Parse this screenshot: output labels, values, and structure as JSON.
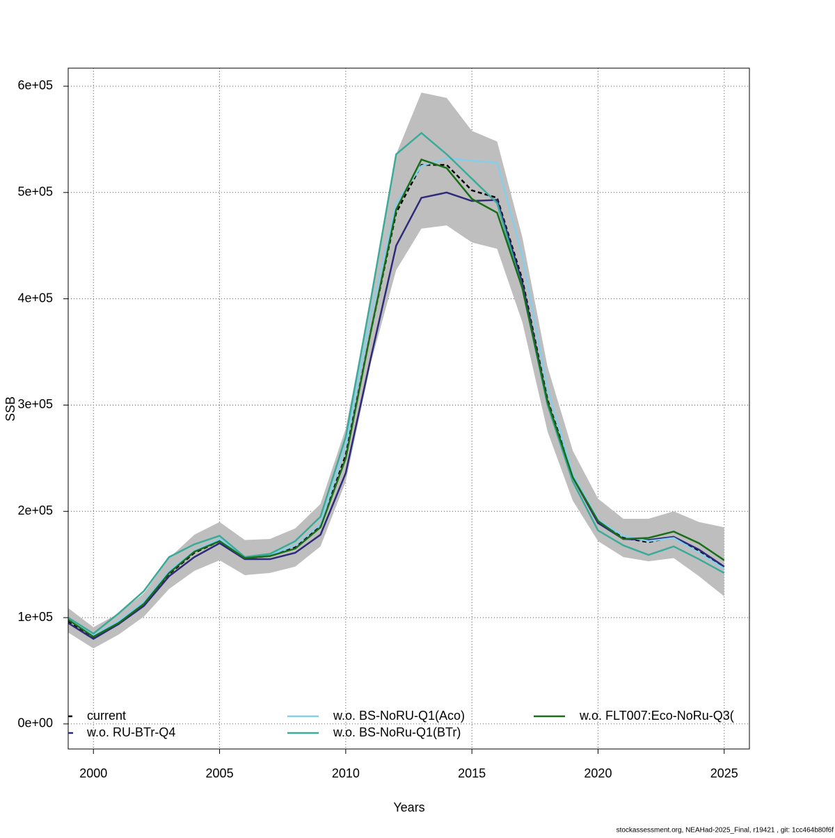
{
  "chart_data": {
    "type": "line",
    "x_label": "Years",
    "y_label": "SSB",
    "footer": "stockassessment.org, NEAHad-2025_Final, r19421 , git: 1cc464b80f6f",
    "x": [
      1999,
      2000,
      2001,
      2002,
      2003,
      2004,
      2005,
      2006,
      2007,
      2008,
      2009,
      2010,
      2011,
      2012,
      2013,
      2014,
      2015,
      2016,
      2017,
      2018,
      2019,
      2020,
      2021,
      2022,
      2023,
      2024,
      2025
    ],
    "xlim": [
      1999,
      2026
    ],
    "xticks": [
      2000,
      2005,
      2010,
      2015,
      2020,
      2025
    ],
    "ylim": [
      -23600,
      617000
    ],
    "yticks": [
      {
        "value": 0,
        "label": "0e+00"
      },
      {
        "value": 100000,
        "label": "1e+05"
      },
      {
        "value": 200000,
        "label": "2e+05"
      },
      {
        "value": 300000,
        "label": "3e+05"
      },
      {
        "value": 400000,
        "label": "4e+05"
      },
      {
        "value": 500000,
        "label": "5e+05"
      },
      {
        "value": 600000,
        "label": "6e+05"
      }
    ],
    "grid": true,
    "band": {
      "color": "#bebebe",
      "lower": [
        86000,
        71000,
        84000,
        101000,
        127000,
        144000,
        154000,
        140000,
        142000,
        148000,
        167000,
        228000,
        340000,
        427000,
        466000,
        469000,
        453000,
        447000,
        378000,
        275000,
        210000,
        172000,
        157000,
        153000,
        156000,
        139000,
        120000
      ],
      "upper": [
        109000,
        91000,
        104000,
        123000,
        156000,
        178000,
        190000,
        173000,
        174000,
        184000,
        207000,
        278000,
        400000,
        536000,
        594000,
        589000,
        558000,
        548000,
        458000,
        336000,
        257000,
        212000,
        193000,
        193000,
        200000,
        190000,
        185000
      ]
    },
    "series": [
      {
        "name": "current",
        "color": "#000000",
        "dashed": true,
        "values": [
          96800,
          81000,
          94000,
          112000,
          141000,
          161000,
          172000,
          156000,
          158000,
          166000,
          186000,
          253000,
          370000,
          481000,
          526000,
          526000,
          502000,
          495000,
          418000,
          305000,
          233000,
          190000,
          175000,
          171000,
          176000,
          163000,
          148000
        ]
      },
      {
        "name": "w.o. RU-BTr-Q4",
        "color": "#2e2a7a",
        "dashed": false,
        "values": [
          95000,
          80000,
          94000,
          111000,
          139000,
          157000,
          170000,
          155000,
          155000,
          161000,
          178000,
          236000,
          345000,
          450000,
          495000,
          500000,
          492000,
          493000,
          415000,
          303000,
          232000,
          189000,
          174000,
          173000,
          176000,
          164000,
          148000
        ]
      },
      {
        "name": "w.o. BS-NoRU-Q1(Aco)",
        "color": "#87ceeb",
        "dashed": false,
        "values": [
          98000,
          83000,
          97000,
          115000,
          144000,
          163000,
          174000,
          157000,
          159000,
          168000,
          188000,
          262000,
          385000,
          490000,
          525000,
          532000,
          530000,
          528000,
          440000,
          315000,
          235000,
          192000,
          177000,
          172000,
          175000,
          161000,
          146000
        ]
      },
      {
        "name": "w.o. BS-NoRu-Q1(BTr)",
        "color": "#3aab98",
        "dashed": false,
        "values": [
          100000,
          85000,
          104000,
          125000,
          157000,
          169000,
          177000,
          157000,
          160000,
          172000,
          195000,
          270000,
          400000,
          536000,
          556000,
          536000,
          513000,
          490000,
          410000,
          300000,
          228000,
          182000,
          168000,
          159000,
          167000,
          155000,
          142000
        ]
      },
      {
        "name": "w.o. FLT007:Eco-NoRu-Q3(",
        "color": "#1a6e1a",
        "dashed": false,
        "values": [
          98000,
          82000,
          95000,
          113000,
          142000,
          162000,
          172000,
          156000,
          158000,
          165000,
          185000,
          250000,
          370000,
          484000,
          531000,
          523000,
          494000,
          481000,
          410000,
          303000,
          232000,
          191000,
          174000,
          175000,
          181000,
          170000,
          154000
        ]
      }
    ]
  }
}
